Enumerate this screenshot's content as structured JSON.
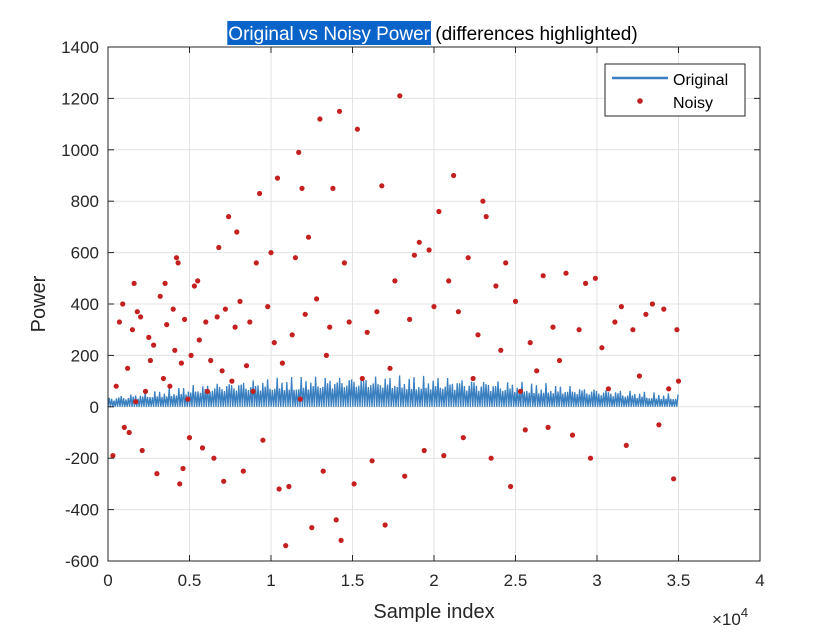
{
  "chart_data": {
    "type": "scatter",
    "title": {
      "highlighted": "Original vs Noisy Power",
      "rest": " (differences highlighted)"
    },
    "xlabel": "Sample index",
    "ylabel": "Power",
    "xlim": [
      0,
      40000
    ],
    "ylim": [
      -600,
      1400
    ],
    "x_exponent_label": "×10",
    "x_exponent_power": "4",
    "xticks": [
      0,
      5000,
      10000,
      15000,
      20000,
      25000,
      30000,
      35000,
      40000
    ],
    "xtick_labels": [
      "0",
      "0.5",
      "1",
      "1.5",
      "2",
      "2.5",
      "3",
      "3.5",
      "4"
    ],
    "yticks": [
      -600,
      -400,
      -200,
      0,
      200,
      400,
      600,
      800,
      1000,
      1200,
      1400
    ],
    "ytick_labels": [
      "-600",
      "-400",
      "-200",
      "0",
      "200",
      "400",
      "600",
      "800",
      "1000",
      "1200",
      "1400"
    ],
    "grid": true,
    "legend_position": "top-right",
    "colors": {
      "original": "#3a80c0",
      "noisy": "#c42020",
      "title_highlight": "#0a63c8"
    },
    "series": [
      {
        "name": "Original",
        "style": "line",
        "x_range": [
          0,
          35000
        ],
        "min": 0,
        "upper_envelope": [
          [
            0,
            40
          ],
          [
            3000,
            65
          ],
          [
            5000,
            85
          ],
          [
            7000,
            100
          ],
          [
            9000,
            110
          ],
          [
            11000,
            118
          ],
          [
            13000,
            122
          ],
          [
            15000,
            124
          ],
          [
            17000,
            124
          ],
          [
            19000,
            122
          ],
          [
            21000,
            118
          ],
          [
            23000,
            110
          ],
          [
            25000,
            100
          ],
          [
            27000,
            92
          ],
          [
            29000,
            80
          ],
          [
            31000,
            70
          ],
          [
            33000,
            60
          ],
          [
            35000,
            50
          ]
        ]
      },
      {
        "name": "Noisy",
        "style": "markers",
        "points": [
          [
            300,
            -190
          ],
          [
            500,
            80
          ],
          [
            700,
            330
          ],
          [
            900,
            400
          ],
          [
            1000,
            -80
          ],
          [
            1200,
            150
          ],
          [
            1300,
            -100
          ],
          [
            1500,
            300
          ],
          [
            1600,
            480
          ],
          [
            1700,
            20
          ],
          [
            1800,
            370
          ],
          [
            2000,
            350
          ],
          [
            2100,
            -170
          ],
          [
            2300,
            60
          ],
          [
            2500,
            270
          ],
          [
            2600,
            180
          ],
          [
            2800,
            240
          ],
          [
            3000,
            -260
          ],
          [
            3200,
            430
          ],
          [
            3400,
            110
          ],
          [
            3500,
            480
          ],
          [
            3600,
            320
          ],
          [
            3800,
            80
          ],
          [
            4000,
            380
          ],
          [
            4100,
            220
          ],
          [
            4200,
            580
          ],
          [
            4300,
            560
          ],
          [
            4400,
            -300
          ],
          [
            4500,
            170
          ],
          [
            4600,
            -240
          ],
          [
            4700,
            340
          ],
          [
            4900,
            30
          ],
          [
            5000,
            -120
          ],
          [
            5100,
            200
          ],
          [
            5300,
            470
          ],
          [
            5500,
            490
          ],
          [
            5600,
            260
          ],
          [
            5800,
            -160
          ],
          [
            6000,
            330
          ],
          [
            6100,
            60
          ],
          [
            6300,
            180
          ],
          [
            6500,
            -200
          ],
          [
            6700,
            350
          ],
          [
            6800,
            620
          ],
          [
            7000,
            140
          ],
          [
            7100,
            -290
          ],
          [
            7200,
            380
          ],
          [
            7400,
            740
          ],
          [
            7600,
            100
          ],
          [
            7800,
            310
          ],
          [
            7900,
            680
          ],
          [
            8100,
            410
          ],
          [
            8300,
            -250
          ],
          [
            8500,
            160
          ],
          [
            8700,
            330
          ],
          [
            8900,
            60
          ],
          [
            9100,
            560
          ],
          [
            9300,
            830
          ],
          [
            9500,
            -130
          ],
          [
            9800,
            390
          ],
          [
            10000,
            600
          ],
          [
            10200,
            250
          ],
          [
            10400,
            890
          ],
          [
            10500,
            -320
          ],
          [
            10700,
            170
          ],
          [
            10900,
            -540
          ],
          [
            11100,
            -310
          ],
          [
            11300,
            280
          ],
          [
            11500,
            580
          ],
          [
            11700,
            990
          ],
          [
            11800,
            30
          ],
          [
            11900,
            850
          ],
          [
            12100,
            360
          ],
          [
            12300,
            660
          ],
          [
            12500,
            -470
          ],
          [
            12800,
            420
          ],
          [
            13000,
            1120
          ],
          [
            13200,
            -250
          ],
          [
            13400,
            200
          ],
          [
            13600,
            310
          ],
          [
            13800,
            850
          ],
          [
            14000,
            -440
          ],
          [
            14200,
            1150
          ],
          [
            14300,
            -520
          ],
          [
            14500,
            560
          ],
          [
            14800,
            330
          ],
          [
            15100,
            -300
          ],
          [
            15300,
            1080
          ],
          [
            15600,
            110
          ],
          [
            15900,
            290
          ],
          [
            16200,
            -210
          ],
          [
            16500,
            370
          ],
          [
            16800,
            860
          ],
          [
            17000,
            -460
          ],
          [
            17300,
            150
          ],
          [
            17600,
            490
          ],
          [
            17900,
            1210
          ],
          [
            18200,
            -270
          ],
          [
            18500,
            340
          ],
          [
            18800,
            590
          ],
          [
            19100,
            640
          ],
          [
            19400,
            -170
          ],
          [
            19700,
            610
          ],
          [
            20000,
            390
          ],
          [
            20300,
            760
          ],
          [
            20600,
            -190
          ],
          [
            20900,
            490
          ],
          [
            21200,
            900
          ],
          [
            21500,
            370
          ],
          [
            21800,
            -120
          ],
          [
            22100,
            580
          ],
          [
            22400,
            110
          ],
          [
            22700,
            280
          ],
          [
            23000,
            800
          ],
          [
            23200,
            740
          ],
          [
            23500,
            -200
          ],
          [
            23800,
            470
          ],
          [
            24100,
            220
          ],
          [
            24400,
            560
          ],
          [
            24700,
            -310
          ],
          [
            25000,
            410
          ],
          [
            25300,
            60
          ],
          [
            25600,
            -90
          ],
          [
            25900,
            250
          ],
          [
            26300,
            140
          ],
          [
            26700,
            510
          ],
          [
            27000,
            -80
          ],
          [
            27300,
            310
          ],
          [
            27700,
            180
          ],
          [
            28100,
            520
          ],
          [
            28500,
            -110
          ],
          [
            28900,
            300
          ],
          [
            29300,
            480
          ],
          [
            29600,
            -200
          ],
          [
            29900,
            500
          ],
          [
            30300,
            230
          ],
          [
            30700,
            70
          ],
          [
            31100,
            330
          ],
          [
            31500,
            390
          ],
          [
            31800,
            -150
          ],
          [
            32200,
            300
          ],
          [
            32600,
            120
          ],
          [
            33000,
            360
          ],
          [
            33400,
            400
          ],
          [
            33800,
            -70
          ],
          [
            34100,
            380
          ],
          [
            34400,
            70
          ],
          [
            34700,
            -280
          ],
          [
            34900,
            300
          ],
          [
            35000,
            100
          ]
        ]
      }
    ]
  }
}
